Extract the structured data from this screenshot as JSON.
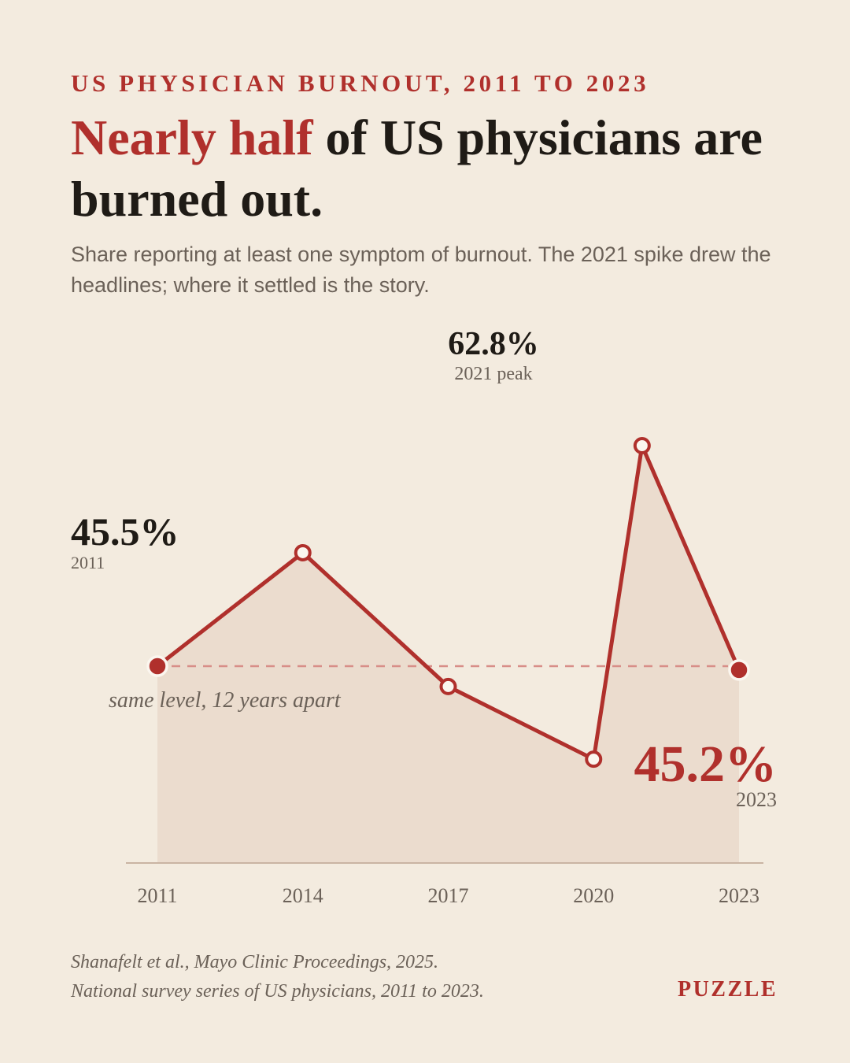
{
  "kicker": "US PHYSICIAN BURNOUT, 2011 TO 2023",
  "headline": {
    "accent": "Nearly half",
    "rest": " of US physicians are burned out."
  },
  "subtitle": "Share reporting at least one symptom of burnout. The 2021 spike drew the headlines; where it settled is the story.",
  "annotations": {
    "peak_value": "62.8%",
    "peak_label": "2021 peak",
    "start_value": "45.5%",
    "start_label": "2011",
    "end_value": "45.2%",
    "end_label": "2023",
    "reference_note": "same level, 12 years apart"
  },
  "colors": {
    "accent": "#b0302c",
    "text": "#1f1b16",
    "muted": "#6b6158",
    "background": "#f3ebdf",
    "area": "#ebdcce"
  },
  "chart_data": {
    "type": "line",
    "x": [
      2011,
      2014,
      2017,
      2020,
      2021,
      2023
    ],
    "values": [
      45.5,
      54.4,
      43.9,
      38.2,
      62.8,
      45.2
    ],
    "x_ticks": [
      "2011",
      "2014",
      "2017",
      "2020",
      "2023"
    ],
    "reference_line": 45.5,
    "xlim": [
      2011,
      2023
    ],
    "grid": false,
    "area_fill": true
  },
  "source": {
    "line1": "Shanafelt et al., Mayo Clinic Proceedings, 2025.",
    "line2": "National survey series of US physicians, 2011 to 2023."
  },
  "brand": "PUZZLE"
}
